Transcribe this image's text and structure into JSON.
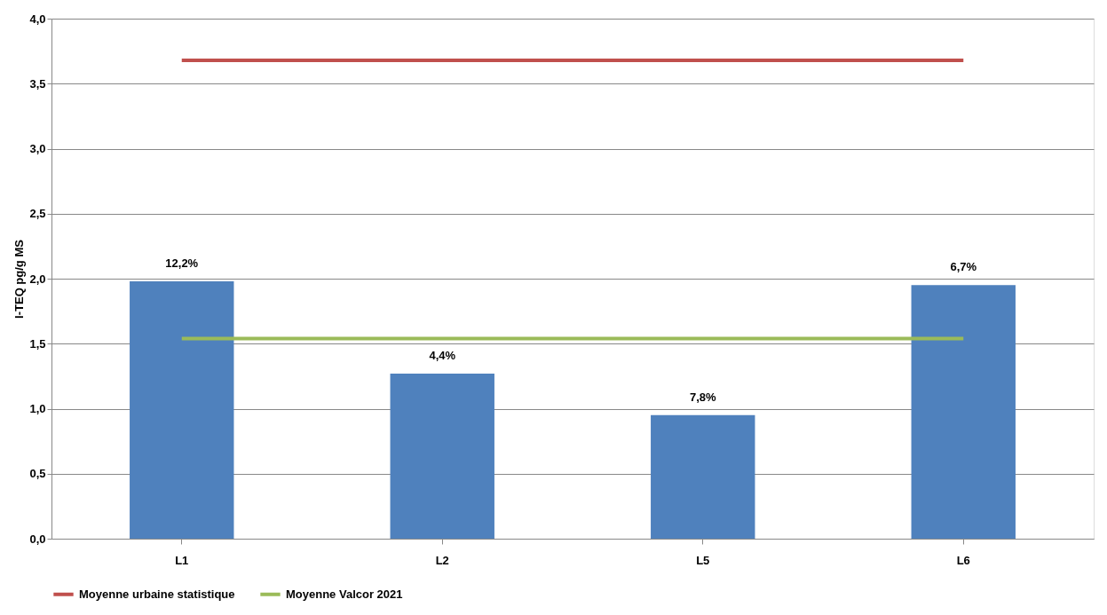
{
  "chart_data": {
    "type": "bar",
    "ylabel": "I-TEQ pg/g MS",
    "categories": [
      "L1",
      "L2",
      "L5",
      "L6"
    ],
    "series": [
      {
        "color": "#4f81bd",
        "values": [
          1.98,
          1.27,
          0.95,
          1.95
        ]
      },
      {
        "type": "line",
        "name": "Moyenne urbaine statistique",
        "color": "#c0504d",
        "values": [
          3.68,
          3.68,
          3.68,
          3.68
        ]
      },
      {
        "type": "line",
        "name": "Moyenne Valcor 2021",
        "color": "#9bbb59",
        "values": [
          1.54,
          1.54,
          1.54,
          1.54
        ]
      }
    ],
    "annotations": [
      {
        "text": "12,2%",
        "x": "L1",
        "y": 1.98
      },
      {
        "text": "4,4%",
        "x": "L2",
        "y": 1.27
      },
      {
        "text": "7,8%",
        "x": "L5",
        "y": 0.95
      },
      {
        "text": "6,7%",
        "x": "L6",
        "y": 1.95
      }
    ],
    "ylim": [
      0,
      4
    ],
    "yticks": [
      {
        "value": 0,
        "label": "0,0"
      },
      {
        "value": 0.5,
        "label": "0,5"
      },
      {
        "value": 1,
        "label": "1,0"
      },
      {
        "value": 1.5,
        "label": "1,5"
      },
      {
        "value": 2,
        "label": "2,0"
      },
      {
        "value": 2.5,
        "label": "2,5"
      },
      {
        "value": 3,
        "label": "3,0"
      },
      {
        "value": 3.5,
        "label": "3,5"
      },
      {
        "value": 4,
        "label": "4,0"
      }
    ],
    "grid": "y",
    "legend": "bottom",
    "line_style": "solid"
  }
}
